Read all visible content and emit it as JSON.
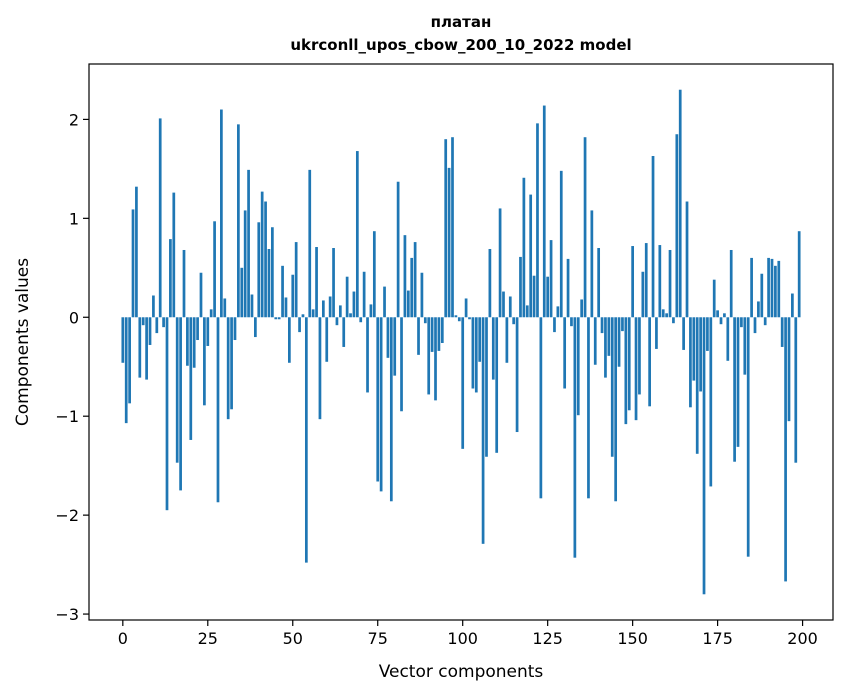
{
  "chart_data": {
    "type": "bar",
    "title": "платан",
    "subtitle": "ukrconll_upos_cbow_200_10_2022 model",
    "xlabel": "Vector components",
    "ylabel": "Components values",
    "xlim": [
      -9.95,
      208.95
    ],
    "ylim": [
      -3.06,
      2.56
    ],
    "xticks": [
      0,
      25,
      50,
      75,
      100,
      125,
      150,
      175,
      200
    ],
    "xtick_labels": [
      "0",
      "25",
      "50",
      "75",
      "100",
      "125",
      "150",
      "175",
      "200"
    ],
    "yticks": [
      -3,
      -2,
      -1,
      0,
      1,
      2
    ],
    "ytick_labels": [
      "−3",
      "−2",
      "−1",
      "0",
      "1",
      "2"
    ],
    "grid": false,
    "legend": "none",
    "colors": {
      "bar": "#1f77b4",
      "axis": "#000000",
      "background": "#ffffff"
    },
    "x": [
      0,
      1,
      2,
      3,
      4,
      5,
      6,
      7,
      8,
      9,
      10,
      11,
      12,
      13,
      14,
      15,
      16,
      17,
      18,
      19,
      20,
      21,
      22,
      23,
      24,
      25,
      26,
      27,
      28,
      29,
      30,
      31,
      32,
      33,
      34,
      35,
      36,
      37,
      38,
      39,
      40,
      41,
      42,
      43,
      44,
      45,
      46,
      47,
      48,
      49,
      50,
      51,
      52,
      53,
      54,
      55,
      56,
      57,
      58,
      59,
      60,
      61,
      62,
      63,
      64,
      65,
      66,
      67,
      68,
      69,
      70,
      71,
      72,
      73,
      74,
      75,
      76,
      77,
      78,
      79,
      80,
      81,
      82,
      83,
      84,
      85,
      86,
      87,
      88,
      89,
      90,
      91,
      92,
      93,
      94,
      95,
      96,
      97,
      98,
      99,
      100,
      101,
      102,
      103,
      104,
      105,
      106,
      107,
      108,
      109,
      110,
      111,
      112,
      113,
      114,
      115,
      116,
      117,
      118,
      119,
      120,
      121,
      122,
      123,
      124,
      125,
      126,
      127,
      128,
      129,
      130,
      131,
      132,
      133,
      134,
      135,
      136,
      137,
      138,
      139,
      140,
      141,
      142,
      143,
      144,
      145,
      146,
      147,
      148,
      149,
      150,
      151,
      152,
      153,
      154,
      155,
      156,
      157,
      158,
      159,
      160,
      161,
      162,
      163,
      164,
      165,
      166,
      167,
      168,
      169,
      170,
      171,
      172,
      173,
      174,
      175,
      176,
      177,
      178,
      179,
      180,
      181,
      182,
      183,
      184,
      185,
      186,
      187,
      188,
      189,
      190,
      191,
      192,
      193,
      194,
      195,
      196,
      197,
      198,
      199
    ],
    "values": [
      -0.46,
      -1.07,
      -0.87,
      1.09,
      1.32,
      -0.61,
      -0.08,
      -0.63,
      -0.28,
      0.22,
      -0.16,
      2.01,
      -0.1,
      -1.95,
      0.79,
      1.26,
      -1.47,
      -1.75,
      0.68,
      -0.49,
      -1.24,
      -0.51,
      -0.23,
      0.45,
      -0.89,
      -0.29,
      0.08,
      0.97,
      -1.87,
      2.1,
      0.19,
      -1.03,
      -0.93,
      -0.23,
      1.95,
      0.5,
      1.08,
      1.49,
      0.23,
      -0.2,
      0.96,
      1.27,
      1.17,
      0.69,
      0.91,
      -0.02,
      -0.02,
      0.52,
      0.2,
      -0.46,
      0.43,
      0.76,
      -0.15,
      0.03,
      -2.48,
      1.49,
      0.08,
      0.71,
      -1.03,
      0.17,
      -0.45,
      0.21,
      0.7,
      -0.08,
      0.12,
      -0.3,
      0.41,
      0.04,
      0.26,
      1.68,
      -0.05,
      0.46,
      -0.76,
      0.13,
      0.87,
      -1.66,
      -1.76,
      0.31,
      -0.41,
      -1.86,
      -0.59,
      1.37,
      -0.95,
      0.83,
      0.27,
      0.6,
      0.76,
      -0.38,
      0.45,
      -0.06,
      -0.78,
      -0.35,
      -0.84,
      -0.34,
      -0.26,
      1.8,
      1.51,
      1.82,
      0.02,
      -0.04,
      -1.33,
      0.19,
      -0.02,
      -0.72,
      -0.76,
      -0.45,
      -2.29,
      -1.41,
      0.69,
      -0.63,
      -1.37,
      1.1,
      0.26,
      -0.46,
      0.21,
      -0.07,
      -1.16,
      0.61,
      1.41,
      0.12,
      1.24,
      0.42,
      1.96,
      -1.83,
      2.14,
      0.41,
      0.78,
      -0.15,
      0.11,
      1.48,
      -0.72,
      0.59,
      -0.09,
      -2.43,
      -0.99,
      0.18,
      1.82,
      -1.83,
      1.08,
      -0.48,
      0.7,
      -0.16,
      -0.61,
      -0.39,
      -1.41,
      -1.86,
      -0.5,
      -0.14,
      -1.08,
      -0.94,
      0.72,
      -1.04,
      -0.78,
      0.46,
      0.75,
      -0.9,
      1.63,
      -0.32,
      0.73,
      0.08,
      0.04,
      0.68,
      -0.06,
      1.85,
      2.3,
      -0.33,
      1.17,
      -0.91,
      -0.64,
      -1.38,
      -0.75,
      -2.8,
      -0.34,
      -1.71,
      0.38,
      0.07,
      -0.07,
      0.04,
      -0.44,
      0.68,
      -1.46,
      -1.31,
      -0.1,
      -0.58,
      -2.42,
      0.6,
      -0.16,
      0.16,
      0.44,
      -0.08,
      0.6,
      0.59,
      0.52,
      0.57,
      -0.3,
      -2.67,
      -1.05,
      0.24,
      -1.47,
      0.87
    ]
  }
}
